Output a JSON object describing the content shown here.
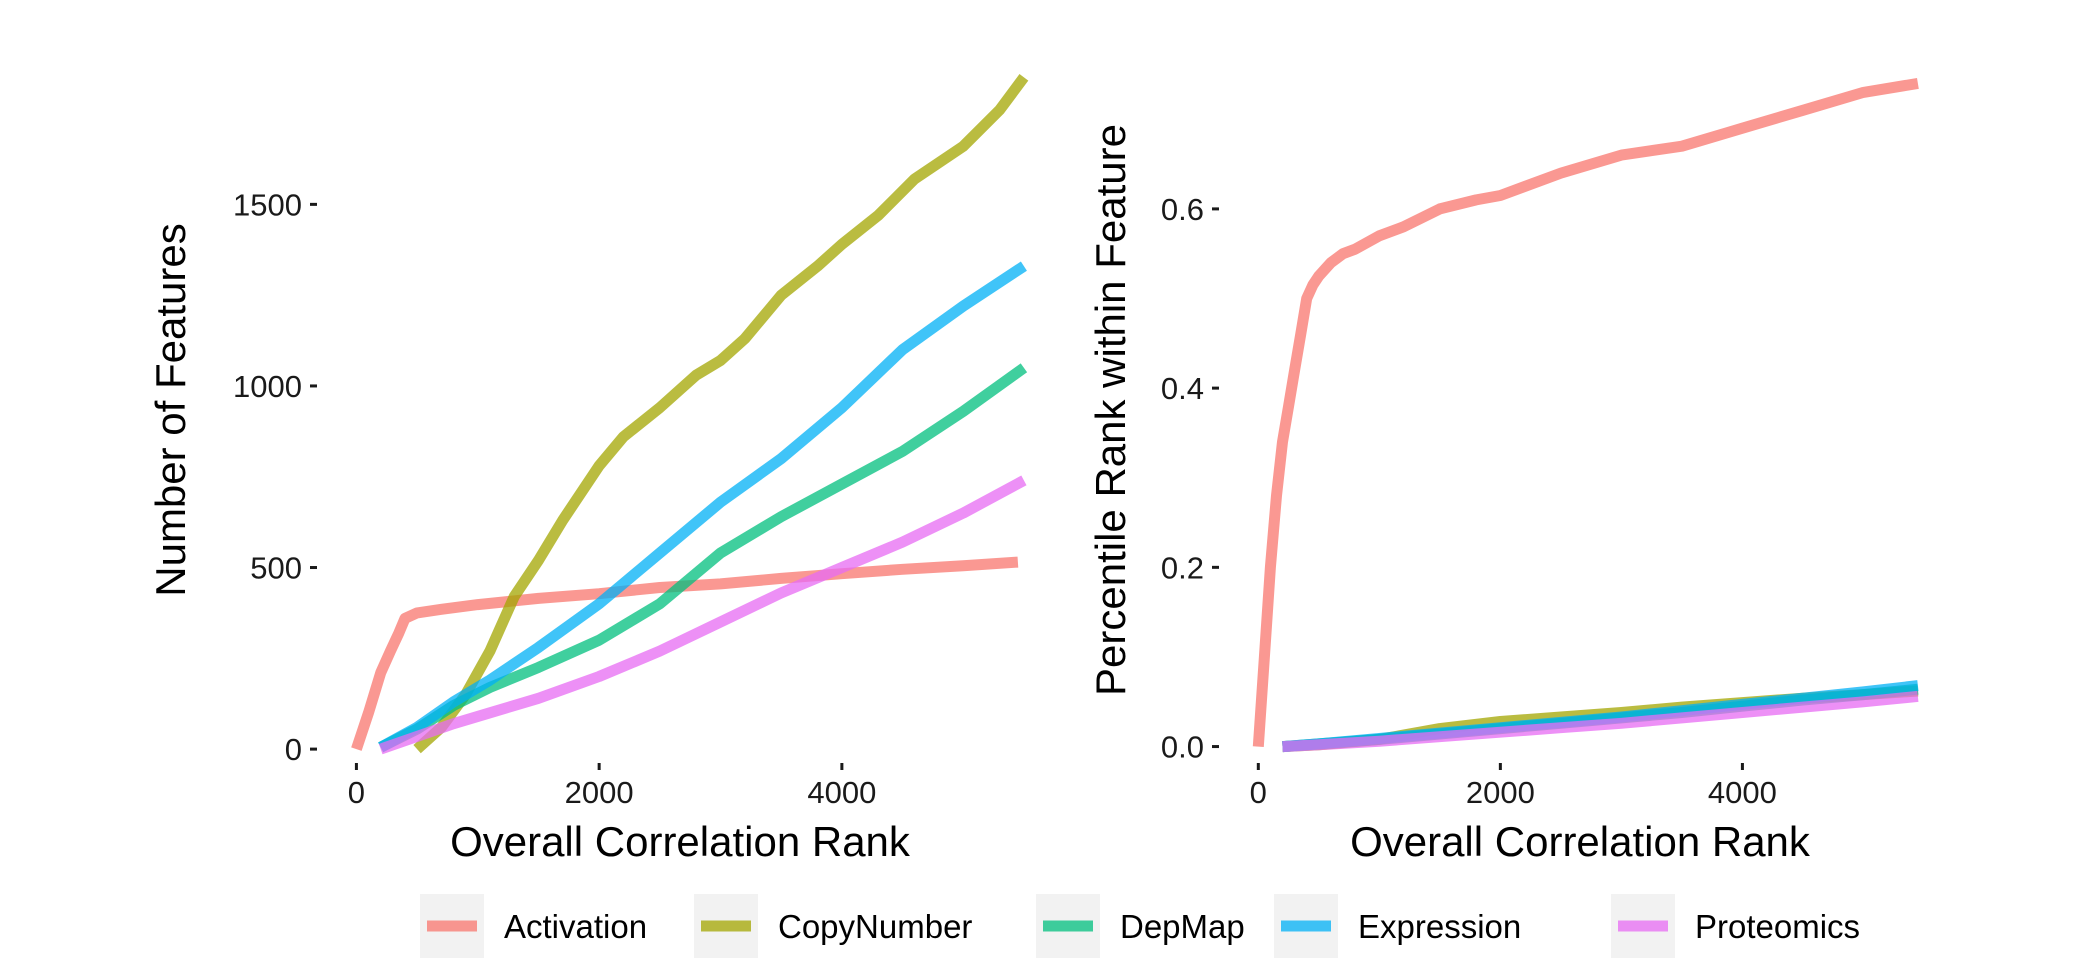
{
  "legend": {
    "items": [
      {
        "label": "Activation",
        "color": "#F8766D"
      },
      {
        "label": "CopyNumber",
        "color": "#A3A500"
      },
      {
        "label": "DepMap",
        "color": "#00BF7D"
      },
      {
        "label": "Expression",
        "color": "#00B0F6"
      },
      {
        "label": "Proteomics",
        "color": "#E76BF3"
      }
    ]
  },
  "chart_data": [
    {
      "type": "line",
      "title": "",
      "xlabel": "Overall Correlation Rank",
      "ylabel": "Number of Features",
      "xlim": [
        -300,
        5550
      ],
      "ylim": [
        -30,
        1870
      ],
      "xticks": [
        0,
        2000,
        4000
      ],
      "yticks": [
        0,
        500,
        1000,
        1500
      ],
      "grid": false,
      "legend_position": "bottom",
      "series": [
        {
          "name": "Activation",
          "color": "#F8766D",
          "x": [
            0,
            100,
            200,
            280,
            350,
            400,
            500,
            700,
            1000,
            1500,
            2000,
            2500,
            3000,
            3500,
            4000,
            4500,
            5000,
            5450
          ],
          "y": [
            0,
            100,
            210,
            270,
            320,
            360,
            375,
            385,
            398,
            415,
            428,
            445,
            455,
            470,
            483,
            495,
            505,
            515
          ]
        },
        {
          "name": "CopyNumber",
          "color": "#A3A500",
          "x": [
            500,
            700,
            900,
            1100,
            1300,
            1500,
            1700,
            2000,
            2200,
            2500,
            2800,
            3000,
            3200,
            3500,
            3800,
            4000,
            4300,
            4600,
            5000,
            5300,
            5500
          ],
          "y": [
            0,
            60,
            150,
            270,
            420,
            520,
            630,
            780,
            860,
            940,
            1030,
            1070,
            1130,
            1250,
            1330,
            1390,
            1470,
            1570,
            1660,
            1760,
            1850
          ]
        },
        {
          "name": "DepMap",
          "color": "#00BF7D",
          "x": [
            200,
            500,
            800,
            1100,
            1500,
            2000,
            2500,
            3000,
            3500,
            4000,
            4500,
            5000,
            5500
          ],
          "y": [
            5,
            55,
            120,
            170,
            225,
            300,
            400,
            540,
            640,
            730,
            820,
            930,
            1050
          ]
        },
        {
          "name": "Expression",
          "color": "#00B0F6",
          "x": [
            200,
            500,
            800,
            1100,
            1500,
            2000,
            2500,
            3000,
            3500,
            4000,
            4500,
            5000,
            5500
          ],
          "y": [
            5,
            60,
            130,
            190,
            280,
            400,
            540,
            680,
            800,
            940,
            1100,
            1220,
            1330
          ]
        },
        {
          "name": "Proteomics",
          "color": "#E76BF3",
          "x": [
            200,
            500,
            800,
            1100,
            1500,
            2000,
            2500,
            3000,
            3500,
            4000,
            4500,
            5000,
            5500
          ],
          "y": [
            0,
            35,
            70,
            100,
            140,
            200,
            270,
            350,
            430,
            500,
            570,
            650,
            740
          ]
        }
      ]
    },
    {
      "type": "line",
      "title": "",
      "xlabel": "Overall Correlation Rank",
      "ylabel": "Percentile Rank within Feature",
      "xlim": [
        -300,
        5550
      ],
      "ylim": [
        -0.015,
        0.755
      ],
      "xticks": [
        0,
        2000,
        4000
      ],
      "yticks": [
        0.0,
        0.2,
        0.4,
        0.6
      ],
      "ytick_labels": [
        "0.0",
        "0.2",
        "0.4",
        "0.6"
      ],
      "grid": false,
      "legend_position": "bottom",
      "series": [
        {
          "name": "Activation",
          "color": "#F8766D",
          "x": [
            0,
            50,
            100,
            150,
            200,
            250,
            300,
            350,
            400,
            450,
            500,
            600,
            700,
            800,
            1000,
            1200,
            1500,
            1800,
            2000,
            2500,
            3000,
            3500,
            4000,
            4500,
            5000,
            5450
          ],
          "y": [
            0,
            0.1,
            0.2,
            0.28,
            0.34,
            0.38,
            0.42,
            0.46,
            0.5,
            0.515,
            0.525,
            0.54,
            0.55,
            0.555,
            0.57,
            0.58,
            0.6,
            0.61,
            0.615,
            0.64,
            0.66,
            0.67,
            0.69,
            0.71,
            0.73,
            0.74
          ]
        },
        {
          "name": "CopyNumber",
          "color": "#A3A500",
          "x": [
            200,
            500,
            1000,
            1500,
            2000,
            2500,
            3000,
            3500,
            4000,
            4500,
            5000,
            5450
          ],
          "y": [
            0,
            0.002,
            0.008,
            0.02,
            0.028,
            0.033,
            0.038,
            0.044,
            0.049,
            0.054,
            0.058,
            0.062
          ]
        },
        {
          "name": "DepMap",
          "color": "#00BF7D",
          "x": [
            200,
            500,
            1000,
            1500,
            2000,
            2500,
            3000,
            3500,
            4000,
            4500,
            5000,
            5450
          ],
          "y": [
            0,
            0.003,
            0.008,
            0.014,
            0.02,
            0.026,
            0.032,
            0.038,
            0.045,
            0.052,
            0.058,
            0.064
          ]
        },
        {
          "name": "Expression",
          "color": "#00B0F6",
          "x": [
            200,
            500,
            1000,
            1500,
            2000,
            2500,
            3000,
            3500,
            4000,
            4500,
            5000,
            5450
          ],
          "y": [
            0,
            0.003,
            0.009,
            0.015,
            0.021,
            0.027,
            0.033,
            0.04,
            0.047,
            0.054,
            0.061,
            0.068
          ]
        },
        {
          "name": "Proteomics",
          "color": "#E76BF3",
          "x": [
            200,
            500,
            1000,
            1500,
            2000,
            2500,
            3000,
            3500,
            4000,
            4500,
            5000,
            5450
          ],
          "y": [
            0,
            0.002,
            0.006,
            0.011,
            0.016,
            0.021,
            0.026,
            0.032,
            0.038,
            0.044,
            0.05,
            0.056
          ]
        }
      ]
    }
  ]
}
